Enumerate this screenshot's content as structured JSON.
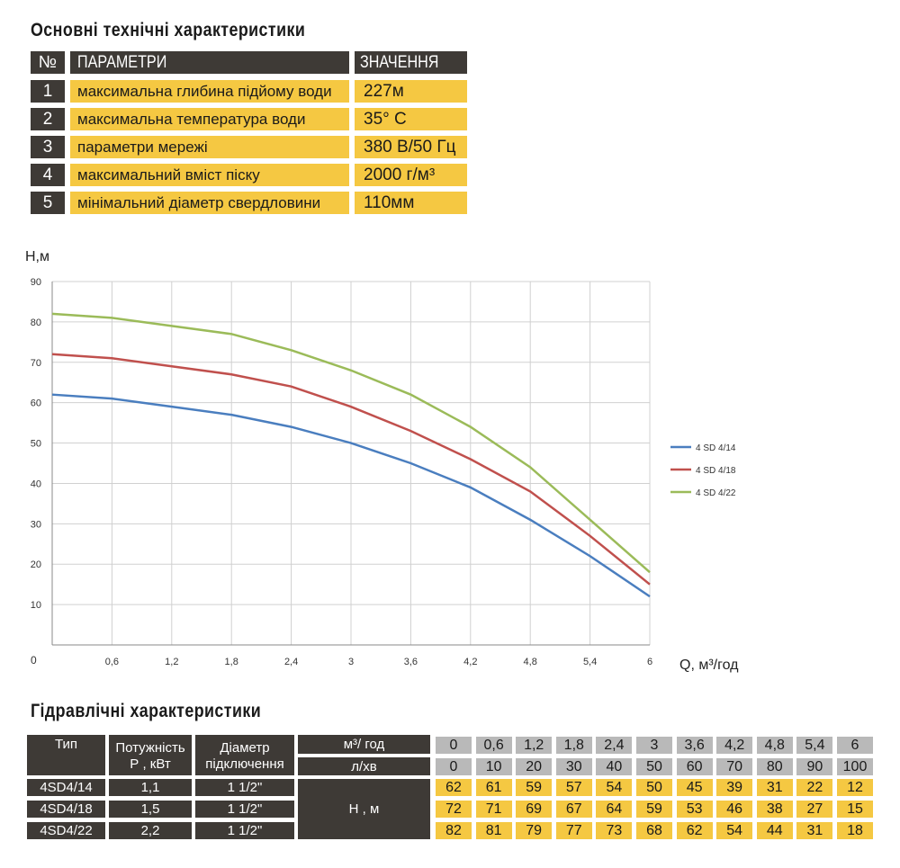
{
  "spec": {
    "title": "Основні технічні характеристики",
    "headers": {
      "num": "№",
      "param": "ПАРАМЕТРИ",
      "value": "ЗНАЧЕННЯ"
    },
    "rows": [
      {
        "num": "1",
        "param": "максимальна глибина підйому води",
        "value": "227м"
      },
      {
        "num": "2",
        "param": "максимальна температура води",
        "value": "35° C"
      },
      {
        "num": "3",
        "param": "параметри мережі",
        "value": "380 В/50 Гц"
      },
      {
        "num": "4",
        "param": "максимальний вміст піску",
        "value": "2000 г/м³"
      },
      {
        "num": "5",
        "param": "мінімальний діаметр свердловини",
        "value": "110мм"
      }
    ]
  },
  "chart_data": {
    "type": "line",
    "xlabel": "Q, м³/год",
    "ylabel": "Н,м",
    "x": [
      0,
      0.6,
      1.2,
      1.8,
      2.4,
      3,
      3.6,
      4.2,
      4.8,
      5.4,
      6
    ],
    "xticks": [
      "0",
      "0,6",
      "1,2",
      "1,8",
      "2,4",
      "3",
      "3,6",
      "4,2",
      "4,8",
      "5,4",
      "6"
    ],
    "yticks": [
      "10",
      "20",
      "30",
      "40",
      "50",
      "60",
      "70",
      "80",
      "90"
    ],
    "xlim": [
      0,
      6
    ],
    "ylim": [
      0,
      90
    ],
    "grid": true,
    "legend": "right",
    "series": [
      {
        "name": "4 SD 4/14",
        "color": "#4a7ebf",
        "values": [
          62,
          61,
          59,
          57,
          54,
          50,
          45,
          39,
          31,
          22,
          12
        ]
      },
      {
        "name": "4 SD 4/18",
        "color": "#c0504d",
        "values": [
          72,
          71,
          69,
          67,
          64,
          59,
          53,
          46,
          38,
          27,
          15
        ]
      },
      {
        "name": "4 SD 4/22",
        "color": "#9bbb59",
        "values": [
          82,
          81,
          79,
          77,
          73,
          68,
          62,
          54,
          44,
          31,
          18
        ]
      }
    ]
  },
  "hydraulic": {
    "title": "Гідравлічні характеристики",
    "headers": {
      "type": "Тип",
      "power": "Потужність",
      "power2": "Р , кВт",
      "diam": "Діаметр",
      "diam2": "підключення",
      "flow_m3": "м³/ год",
      "flow_l": "л/хв",
      "head": "Н , м"
    },
    "q_m3": [
      "0",
      "0,6",
      "1,2",
      "1,8",
      "2,4",
      "3",
      "3,6",
      "4,2",
      "4,8",
      "5,4",
      "6"
    ],
    "q_l": [
      "0",
      "10",
      "20",
      "30",
      "40",
      "50",
      "60",
      "70",
      "80",
      "90",
      "100"
    ],
    "models": [
      {
        "type": "4SD4/14",
        "power": "1,1",
        "diam": "1 1/2\"",
        "h": [
          "62",
          "61",
          "59",
          "57",
          "54",
          "50",
          "45",
          "39",
          "31",
          "22",
          "12"
        ]
      },
      {
        "type": "4SD4/18",
        "power": "1,5",
        "diam": "1 1/2\"",
        "h": [
          "72",
          "71",
          "69",
          "67",
          "64",
          "59",
          "53",
          "46",
          "38",
          "27",
          "15"
        ]
      },
      {
        "type": "4SD4/22",
        "power": "2,2",
        "diam": "1 1/2\"",
        "h": [
          "82",
          "81",
          "79",
          "77",
          "73",
          "68",
          "62",
          "54",
          "44",
          "31",
          "18"
        ]
      }
    ]
  }
}
